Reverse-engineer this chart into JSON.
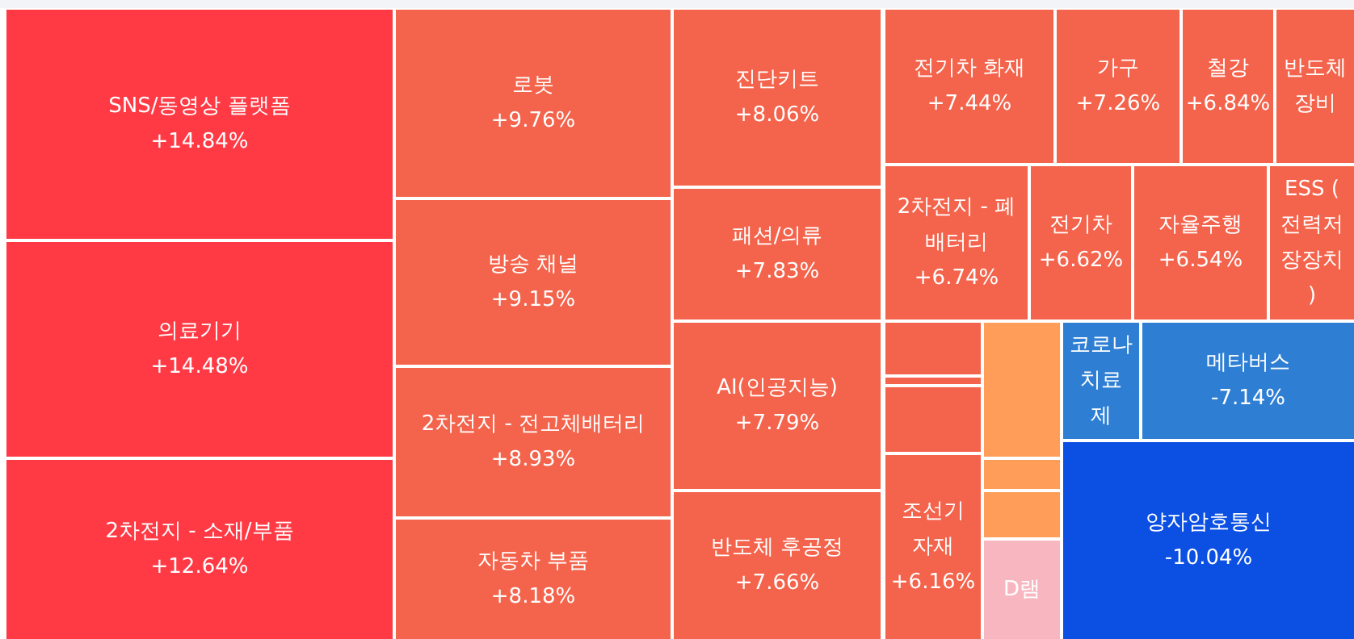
{
  "chart_data": {
    "type": "other",
    "categories": [
      "SNS/동영상 플랫폼",
      "의료기기",
      "2차전지 - 소재/부품",
      "로봇",
      "방송 채널",
      "2차전지 - 전고체배터리",
      "자동차 부품",
      "진단키트",
      "패션/의류",
      "AI(인공지능)",
      "반도체 후공정",
      "전기차 화재",
      "가구",
      "철강",
      "반도체 장비",
      "2차전지 - 폐배터리",
      "전기차",
      "자율주행",
      "ESS (전력저장장치)",
      null,
      null,
      null,
      "조선기자재",
      null,
      null,
      null,
      "D램",
      "코로나 치료제",
      "메타버스",
      "양자암호통신"
    ],
    "values": [
      14.84,
      14.48,
      12.64,
      9.76,
      9.15,
      8.93,
      8.18,
      8.06,
      7.83,
      7.79,
      7.66,
      7.44,
      7.26,
      6.84,
      null,
      6.74,
      6.62,
      6.54,
      null,
      null,
      null,
      null,
      6.16,
      null,
      null,
      null,
      null,
      null,
      -7.14,
      -10.04
    ],
    "value_labels": [
      "+14.84%",
      "+14.48%",
      "+12.64%",
      "+9.76%",
      "+9.15%",
      "+8.93%",
      "+8.18%",
      "+8.06%",
      "+7.83%",
      "+7.79%",
      "+7.66%",
      "+7.44%",
      "+7.26%",
      "+6.84%",
      null,
      "+6.74%",
      "+6.62%",
      "+6.54%",
      null,
      null,
      null,
      null,
      "+6.16%",
      null,
      null,
      null,
      null,
      null,
      "-7.14%",
      "-10.04%"
    ],
    "colors": [
      "#ff3a45",
      "#ff3a45",
      "#ff3a45",
      "#f4634b",
      "#f4634b",
      "#f4634b",
      "#f4634b",
      "#f4634b",
      "#f4634b",
      "#f4634b",
      "#f4634b",
      "#f4634b",
      "#f4634b",
      "#f4634b",
      "#f4634b",
      "#f4634b",
      "#f4634b",
      "#f4634b",
      "#f4634b",
      "#f4634b",
      "#f4634b",
      "#f4634b",
      "#f4634b",
      "#ff9d59",
      "#ff9d59",
      "#ff9d59",
      "#f8b6c0",
      "#2e7fd4",
      "#2e7fd4",
      "#0b4fe3"
    ]
  }
}
